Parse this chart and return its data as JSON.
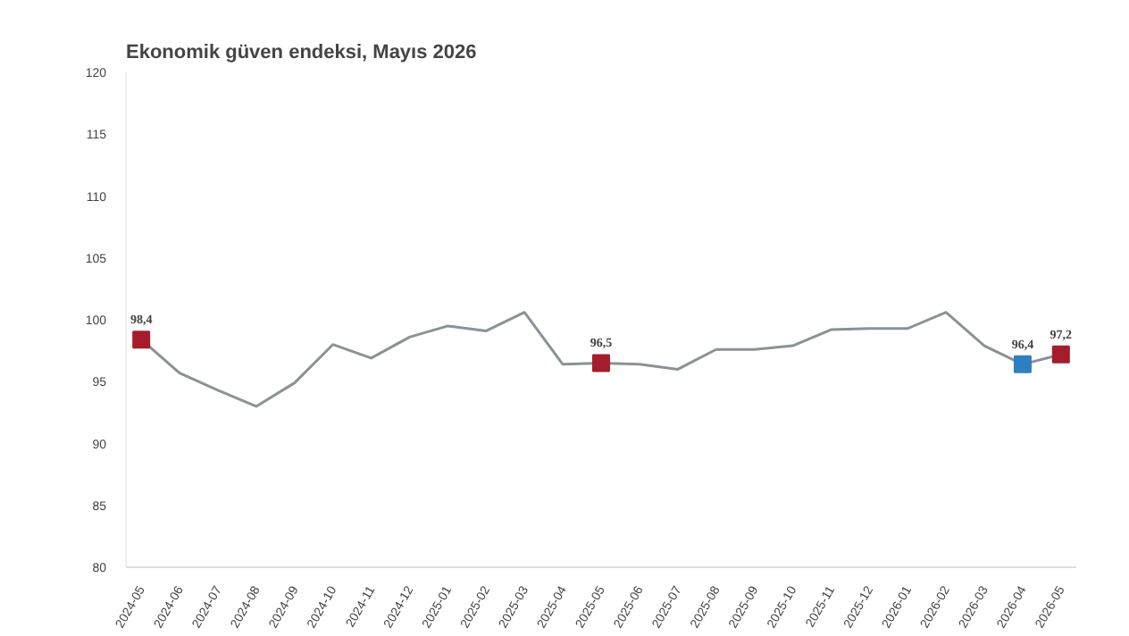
{
  "chart_data": {
    "type": "line",
    "title": "Ekonomik güven endeksi, Mayıs 2026",
    "categories": [
      "2024-05",
      "2024-06",
      "2024-07",
      "2024-08",
      "2024-09",
      "2024-10",
      "2024-11",
      "2024-12",
      "2025-01",
      "2025-02",
      "2025-03",
      "2025-04",
      "2025-05",
      "2025-06",
      "2025-07",
      "2025-08",
      "2025-09",
      "2025-10",
      "2025-11",
      "2025-12",
      "2026-01",
      "2026-02",
      "2026-03",
      "2026-04",
      "2026-05"
    ],
    "series": [
      {
        "color": "#8a9296",
        "values": [
          98.4,
          95.7,
          94.3,
          93.0,
          94.9,
          98.0,
          96.9,
          98.6,
          99.5,
          99.1,
          100.6,
          96.4,
          96.5,
          96.4,
          96.0,
          97.6,
          97.6,
          97.9,
          99.2,
          99.3,
          99.3,
          100.6,
          97.9,
          96.4,
          97.2
        ]
      },
      {
        "type": "scatter",
        "marker": "square",
        "values": [
          98.4,
          null,
          null,
          null,
          null,
          null,
          null,
          null,
          null,
          null,
          null,
          null,
          96.5,
          null,
          null,
          null,
          null,
          null,
          null,
          null,
          null,
          null,
          null,
          96.4,
          97.2
        ],
        "colors": [
          "#a51d2d",
          null,
          null,
          null,
          null,
          null,
          null,
          null,
          null,
          null,
          null,
          null,
          "#a51d2d",
          null,
          null,
          null,
          null,
          null,
          null,
          null,
          null,
          null,
          null,
          "#2e7fbf",
          "#a51d2d"
        ],
        "value_labels": [
          "98,4",
          null,
          null,
          null,
          null,
          null,
          null,
          null,
          null,
          null,
          null,
          null,
          "96,5",
          null,
          null,
          null,
          null,
          null,
          null,
          null,
          null,
          null,
          null,
          "96,4",
          "97,2"
        ]
      }
    ],
    "ylim": [
      80,
      120
    ],
    "yticks": [
      80,
      85,
      90,
      95,
      100,
      105,
      110,
      115,
      120
    ],
    "grid": false
  }
}
